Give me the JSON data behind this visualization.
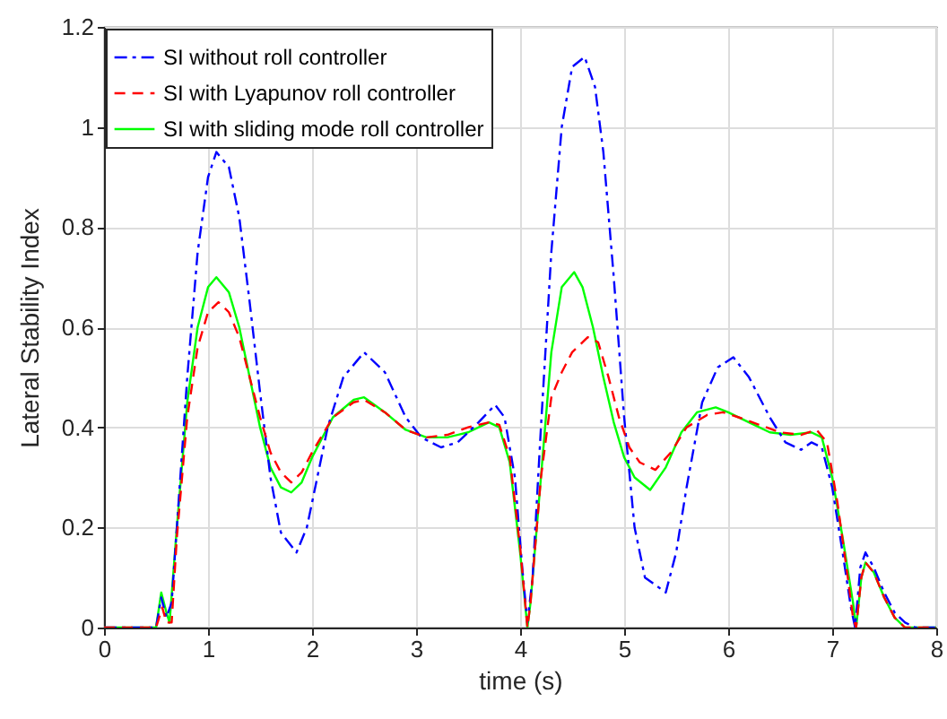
{
  "chart_data": {
    "type": "line",
    "xlabel": "time (s)",
    "ylabel": "Lateral Stability Index",
    "xlim": [
      0,
      8
    ],
    "ylim": [
      0,
      1.2
    ],
    "xticks": [
      0,
      1,
      2,
      3,
      4,
      5,
      6,
      7,
      8
    ],
    "yticks": [
      0,
      0.2,
      0.4,
      0.6,
      0.8,
      1,
      1.2
    ],
    "grid": true,
    "legend": "top left",
    "marker": "none",
    "series": [
      {
        "name": "SI without roll controller",
        "color": "#0000ff",
        "line_style": "dashdot",
        "x": [
          0,
          0.5,
          0.55,
          0.6,
          0.65,
          0.7,
          0.8,
          0.9,
          1.0,
          1.08,
          1.2,
          1.3,
          1.4,
          1.5,
          1.6,
          1.7,
          1.85,
          1.95,
          2.05,
          2.15,
          2.3,
          2.5,
          2.7,
          2.9,
          3.05,
          3.24,
          3.4,
          3.6,
          3.76,
          3.85,
          3.95,
          4.02,
          4.07,
          4.12,
          4.2,
          4.3,
          4.4,
          4.5,
          4.62,
          4.72,
          4.8,
          4.9,
          5.0,
          5.1,
          5.2,
          5.4,
          5.5,
          5.6,
          5.75,
          5.9,
          6.05,
          6.2,
          6.4,
          6.55,
          6.7,
          6.8,
          6.9,
          7.0,
          7.1,
          7.18,
          7.22,
          7.27,
          7.32,
          7.4,
          7.5,
          7.6,
          7.7,
          7.8,
          8
        ],
        "values": [
          0,
          0,
          0.06,
          0.02,
          0.05,
          0.2,
          0.5,
          0.75,
          0.9,
          0.95,
          0.92,
          0.82,
          0.65,
          0.47,
          0.3,
          0.19,
          0.15,
          0.2,
          0.3,
          0.4,
          0.5,
          0.55,
          0.51,
          0.42,
          0.38,
          0.36,
          0.37,
          0.41,
          0.445,
          0.42,
          0.3,
          0.12,
          0.01,
          0.1,
          0.4,
          0.75,
          1.0,
          1.12,
          1.14,
          1.08,
          0.95,
          0.7,
          0.42,
          0.2,
          0.1,
          0.07,
          0.15,
          0.28,
          0.45,
          0.52,
          0.54,
          0.5,
          0.42,
          0.37,
          0.355,
          0.37,
          0.36,
          0.28,
          0.15,
          0.04,
          0,
          0.12,
          0.15,
          0.12,
          0.07,
          0.03,
          0.01,
          0,
          0
        ]
      },
      {
        "name": "SI with Lyapunov roll controller",
        "color": "#ff0000",
        "line_style": "dashed",
        "x": [
          0,
          0.5,
          0.56,
          0.6,
          0.65,
          0.7,
          0.8,
          0.9,
          1.0,
          1.1,
          1.2,
          1.3,
          1.4,
          1.5,
          1.6,
          1.7,
          1.8,
          1.9,
          2.0,
          2.2,
          2.4,
          2.5,
          2.7,
          2.9,
          3.1,
          3.3,
          3.5,
          3.7,
          3.8,
          3.9,
          4.0,
          4.07,
          4.1,
          4.2,
          4.3,
          4.4,
          4.5,
          4.65,
          4.75,
          4.85,
          4.95,
          5.05,
          5.15,
          5.3,
          5.45,
          5.6,
          5.8,
          5.95,
          6.1,
          6.3,
          6.5,
          6.7,
          6.85,
          6.95,
          7.05,
          7.15,
          7.2,
          7.23,
          7.28,
          7.32,
          7.4,
          7.5,
          7.6,
          7.7,
          8
        ],
        "values": [
          0,
          0,
          0.04,
          0.01,
          0.01,
          0.18,
          0.42,
          0.56,
          0.63,
          0.65,
          0.63,
          0.58,
          0.5,
          0.42,
          0.35,
          0.31,
          0.29,
          0.31,
          0.35,
          0.42,
          0.45,
          0.455,
          0.43,
          0.395,
          0.38,
          0.385,
          0.4,
          0.41,
          0.405,
          0.34,
          0.16,
          0,
          0.05,
          0.3,
          0.46,
          0.51,
          0.55,
          0.58,
          0.57,
          0.5,
          0.42,
          0.36,
          0.33,
          0.315,
          0.35,
          0.4,
          0.425,
          0.43,
          0.42,
          0.405,
          0.39,
          0.385,
          0.395,
          0.37,
          0.25,
          0.1,
          0.02,
          0,
          0.1,
          0.13,
          0.11,
          0.06,
          0.02,
          0,
          0
        ]
      },
      {
        "name": "SI with sliding mode roll controller",
        "color": "#00ff00",
        "line_style": "solid",
        "x": [
          0,
          0.5,
          0.55,
          0.6,
          0.63,
          0.7,
          0.8,
          0.9,
          1.0,
          1.08,
          1.2,
          1.3,
          1.4,
          1.5,
          1.6,
          1.7,
          1.8,
          1.9,
          2.0,
          2.2,
          2.4,
          2.5,
          2.7,
          2.9,
          3.1,
          3.3,
          3.5,
          3.7,
          3.8,
          3.9,
          4.0,
          4.07,
          4.1,
          4.2,
          4.3,
          4.4,
          4.52,
          4.6,
          4.7,
          4.8,
          4.9,
          5.0,
          5.1,
          5.25,
          5.4,
          5.55,
          5.7,
          5.88,
          6.0,
          6.2,
          6.4,
          6.6,
          6.8,
          6.9,
          7.0,
          7.1,
          7.2,
          7.23,
          7.28,
          7.32,
          7.4,
          7.5,
          7.6,
          7.7,
          8
        ],
        "values": [
          0,
          0,
          0.07,
          0.03,
          0.01,
          0.2,
          0.45,
          0.6,
          0.68,
          0.7,
          0.67,
          0.6,
          0.5,
          0.4,
          0.32,
          0.28,
          0.27,
          0.29,
          0.34,
          0.42,
          0.455,
          0.46,
          0.43,
          0.395,
          0.38,
          0.38,
          0.39,
          0.41,
          0.4,
          0.33,
          0.15,
          0,
          0.05,
          0.3,
          0.55,
          0.68,
          0.71,
          0.68,
          0.6,
          0.5,
          0.41,
          0.34,
          0.3,
          0.275,
          0.32,
          0.39,
          0.43,
          0.44,
          0.43,
          0.41,
          0.39,
          0.385,
          0.39,
          0.38,
          0.3,
          0.18,
          0.05,
          0,
          0.1,
          0.13,
          0.11,
          0.06,
          0.02,
          0,
          0
        ]
      }
    ]
  }
}
